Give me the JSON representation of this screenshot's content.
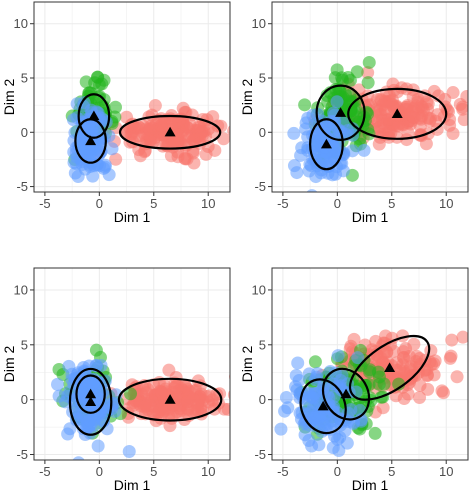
{
  "colors": {
    "red": "#F8766D",
    "green": "#22B41E",
    "blue": "#619CFF",
    "ellipse": "#000000",
    "grid": "#EBEBEB",
    "panel_border": "#333333"
  },
  "chart_data": [
    {
      "type": "scatter",
      "xlabel": "Dim 1",
      "ylabel": "Dim 2",
      "xlim": [
        -6,
        12
      ],
      "ylim": [
        -5.5,
        12
      ],
      "x_ticks": [
        -5,
        0,
        5,
        10
      ],
      "y_ticks": [
        -5,
        0,
        5,
        10
      ],
      "grid": true,
      "clusters": [
        {
          "color": "red",
          "center": [
            6.5,
            0.0
          ],
          "spread": [
            2.5,
            0.9
          ],
          "ellipse_radii": [
            4.6,
            1.5
          ],
          "ellipse_angle": 0,
          "n": 170
        },
        {
          "color": "green",
          "center": [
            -0.5,
            1.5
          ],
          "spread": [
            0.9,
            1.4
          ],
          "ellipse_radii": [
            1.4,
            2.0
          ],
          "ellipse_angle": 0,
          "n": 70
        },
        {
          "color": "blue",
          "center": [
            -0.8,
            -0.8
          ],
          "spread": [
            0.9,
            1.6
          ],
          "ellipse_radii": [
            1.4,
            2.0
          ],
          "ellipse_angle": 0,
          "n": 110
        }
      ]
    },
    {
      "type": "scatter",
      "xlabel": "Dim 1",
      "ylabel": "Dim 2",
      "xlim": [
        -6,
        12
      ],
      "ylim": [
        -5.5,
        12
      ],
      "x_ticks": [
        -5,
        0,
        5,
        10
      ],
      "y_ticks": [
        -5,
        0,
        5,
        10
      ],
      "grid": true,
      "clusters": [
        {
          "color": "red",
          "center": [
            5.5,
            1.7
          ],
          "spread": [
            2.6,
            1.2
          ],
          "ellipse_radii": [
            4.5,
            2.3
          ],
          "ellipse_angle": 0,
          "n": 170
        },
        {
          "color": "green",
          "center": [
            0.3,
            1.8
          ],
          "spread": [
            1.3,
            1.9
          ],
          "ellipse_radii": [
            2.2,
            2.5
          ],
          "ellipse_angle": 0,
          "n": 110
        },
        {
          "color": "blue",
          "center": [
            -1.0,
            -1.1
          ],
          "spread": [
            1.1,
            1.7
          ],
          "ellipse_radii": [
            1.5,
            2.3
          ],
          "ellipse_angle": 0,
          "n": 110
        }
      ]
    },
    {
      "type": "scatter",
      "xlabel": "Dim 1",
      "ylabel": "Dim 2",
      "xlim": [
        -6,
        12
      ],
      "ylim": [
        -5.5,
        12
      ],
      "x_ticks": [
        -5,
        0,
        5,
        10
      ],
      "y_ticks": [
        -5,
        0,
        5,
        10
      ],
      "grid": true,
      "clusters": [
        {
          "color": "red",
          "center": [
            6.5,
            0.0
          ],
          "spread": [
            2.5,
            0.9
          ],
          "ellipse_radii": [
            4.7,
            1.9
          ],
          "ellipse_angle": 0,
          "n": 170
        },
        {
          "color": "green",
          "center": [
            -0.8,
            0.5
          ],
          "spread": [
            1.3,
            1.5
          ],
          "ellipse_radii": [
            1.3,
            1.7
          ],
          "ellipse_angle": 0,
          "n": 50
        },
        {
          "color": "blue",
          "center": [
            -0.8,
            -0.2
          ],
          "spread": [
            1.1,
            1.9
          ],
          "ellipse_radii": [
            1.9,
            3.0
          ],
          "ellipse_angle": 0,
          "n": 130
        }
      ]
    },
    {
      "type": "scatter",
      "xlabel": "Dim 1",
      "ylabel": "Dim 2",
      "xlim": [
        -6,
        12
      ],
      "ylim": [
        -5.5,
        12
      ],
      "x_ticks": [
        -5,
        0,
        5,
        10
      ],
      "y_ticks": [
        -5,
        0,
        5,
        10
      ],
      "grid": true,
      "clusters": [
        {
          "color": "red",
          "center": [
            4.8,
            2.9
          ],
          "spread": [
            2.3,
            1.5
          ],
          "ellipse_radii": [
            4.2,
            2.0
          ],
          "ellipse_angle": 35,
          "n": 150
        },
        {
          "color": "green",
          "center": [
            0.8,
            0.5
          ],
          "spread": [
            1.8,
            1.8
          ],
          "ellipse_radii": [
            2.0,
            2.4
          ],
          "ellipse_angle": 30,
          "n": 110
        },
        {
          "color": "blue",
          "center": [
            -1.3,
            -0.6
          ],
          "spread": [
            1.5,
            1.6
          ],
          "ellipse_radii": [
            2.0,
            2.5
          ],
          "ellipse_angle": 20,
          "n": 120
        }
      ]
    }
  ]
}
